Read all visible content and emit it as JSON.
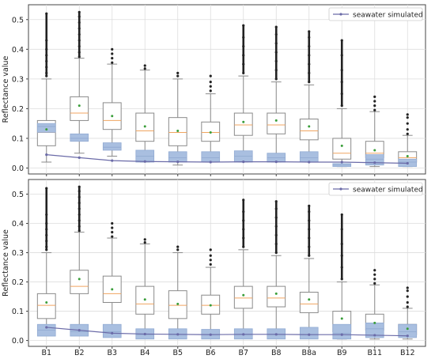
{
  "chart_data": [
    {
      "type": "box",
      "ylabel": "Reflectance value",
      "ylim": [
        -0.02,
        0.55
      ],
      "yticks": [
        "0.0",
        "0.1",
        "0.2",
        "0.3",
        "0.4",
        "0.5"
      ],
      "categories": [
        "B1",
        "B2",
        "B3",
        "B4",
        "B5",
        "B6",
        "B7",
        "B8",
        "B8a",
        "B9",
        "B11",
        "B12"
      ],
      "show_xticklabels": false,
      "grid": true,
      "legend": {
        "label": "seawater simulated",
        "placement": "top-right"
      },
      "series": [
        {
          "role": "white-boxes",
          "boxes": [
            {
              "whislo": 0.02,
              "q1": 0.075,
              "med": 0.12,
              "q3": 0.16,
              "whishi": 0.3,
              "mean": 0.13,
              "fliers": [
                0.31,
                0.32,
                0.34,
                0.36,
                0.38,
                0.4,
                0.43,
                0.52
              ]
            },
            {
              "whislo": 0.05,
              "q1": 0.16,
              "med": 0.185,
              "q3": 0.24,
              "whishi": 0.37,
              "mean": 0.21,
              "fliers": [
                0.375,
                0.39,
                0.41,
                0.43,
                0.45,
                0.47,
                0.49,
                0.51,
                0.525
              ]
            },
            {
              "whislo": 0.04,
              "q1": 0.13,
              "med": 0.16,
              "q3": 0.22,
              "whishi": 0.35,
              "mean": 0.175,
              "fliers": [
                0.355,
                0.37,
                0.385,
                0.4
              ]
            },
            {
              "whislo": 0.02,
              "q1": 0.09,
              "med": 0.125,
              "q3": 0.185,
              "whishi": 0.33,
              "mean": 0.14,
              "fliers": [
                0.335,
                0.345
              ]
            },
            {
              "whislo": 0.01,
              "q1": 0.075,
              "med": 0.12,
              "q3": 0.17,
              "whishi": 0.3,
              "mean": 0.125,
              "fliers": [
                0.31,
                0.32
              ]
            },
            {
              "whislo": 0.02,
              "q1": 0.09,
              "med": 0.12,
              "q3": 0.155,
              "whishi": 0.25,
              "mean": 0.12,
              "fliers": [
                0.26,
                0.275,
                0.29,
                0.31
              ]
            },
            {
              "whislo": 0.02,
              "q1": 0.11,
              "med": 0.145,
              "q3": 0.185,
              "whishi": 0.31,
              "mean": 0.155,
              "fliers": [
                0.32,
                0.35,
                0.38,
                0.41,
                0.44,
                0.48
              ]
            },
            {
              "whislo": 0.02,
              "q1": 0.115,
              "med": 0.145,
              "q3": 0.185,
              "whishi": 0.29,
              "mean": 0.16,
              "fliers": [
                0.3,
                0.33,
                0.36,
                0.39,
                0.42,
                0.45,
                0.475
              ]
            },
            {
              "whislo": 0.02,
              "q1": 0.095,
              "med": 0.125,
              "q3": 0.165,
              "whishi": 0.28,
              "mean": 0.14,
              "fliers": [
                0.29,
                0.32,
                0.35,
                0.38,
                0.41,
                0.44,
                0.46
              ]
            },
            {
              "whislo": 0.005,
              "q1": 0.03,
              "med": 0.05,
              "q3": 0.1,
              "whishi": 0.2,
              "mean": 0.075,
              "fliers": [
                0.21,
                0.25,
                0.29,
                0.33,
                0.38,
                0.43
              ]
            },
            {
              "whislo": 0.005,
              "q1": 0.035,
              "med": 0.05,
              "q3": 0.09,
              "whishi": 0.19,
              "mean": 0.06,
              "fliers": [
                0.195,
                0.21,
                0.225,
                0.24
              ]
            },
            {
              "whislo": 0.005,
              "q1": 0.02,
              "med": 0.035,
              "q3": 0.055,
              "whishi": 0.11,
              "mean": 0.04,
              "fliers": [
                0.115,
                0.13,
                0.15,
                0.17,
                0.18
              ]
            }
          ]
        },
        {
          "role": "blue-boxes",
          "boxes": [
            {
              "q1": 0.12,
              "med": 0.14,
              "q3": 0.15
            },
            {
              "q1": 0.09,
              "med": 0.1,
              "q3": 0.115
            },
            {
              "q1": 0.06,
              "med": 0.07,
              "q3": 0.085
            },
            {
              "q1": 0.02,
              "med": 0.04,
              "q3": 0.06
            },
            {
              "q1": 0.02,
              "med": 0.035,
              "q3": 0.055
            },
            {
              "q1": 0.02,
              "med": 0.035,
              "q3": 0.055
            },
            {
              "q1": 0.02,
              "med": 0.04,
              "q3": 0.058
            },
            {
              "q1": 0.02,
              "med": 0.035,
              "q3": 0.05
            },
            {
              "q1": 0.02,
              "med": 0.035,
              "q3": 0.055
            },
            {
              "q1": 0.005,
              "med": 0.01,
              "q3": 0.015
            },
            {
              "q1": 0.01,
              "med": 0.03,
              "q3": 0.045
            },
            {
              "q1": 0.005,
              "med": 0.02,
              "q3": 0.03
            }
          ]
        },
        {
          "name": "seawater simulated",
          "role": "line",
          "values": [
            0.045,
            0.035,
            0.025,
            0.022,
            0.021,
            0.02,
            0.021,
            0.021,
            0.02,
            0.02,
            0.018,
            0.016
          ]
        }
      ]
    },
    {
      "type": "box",
      "ylabel": "Reflectance value",
      "ylim": [
        -0.02,
        0.55
      ],
      "yticks": [
        "0.0",
        "0.1",
        "0.2",
        "0.3",
        "0.4",
        "0.5"
      ],
      "categories": [
        "B1",
        "B2",
        "B3",
        "B4",
        "B5",
        "B6",
        "B7",
        "B8",
        "B8a",
        "B9",
        "B11",
        "B12"
      ],
      "show_xticklabels": true,
      "grid": true,
      "legend": {
        "label": "seawater simulated",
        "placement": "top-right"
      },
      "series": [
        {
          "role": "white-boxes",
          "boxes": [
            {
              "whislo": 0.02,
              "q1": 0.075,
              "med": 0.12,
              "q3": 0.16,
              "whishi": 0.3,
              "mean": 0.13,
              "fliers": [
                0.31,
                0.32,
                0.34,
                0.36,
                0.38,
                0.4,
                0.43,
                0.52
              ]
            },
            {
              "whislo": 0.05,
              "q1": 0.16,
              "med": 0.185,
              "q3": 0.24,
              "whishi": 0.37,
              "mean": 0.21,
              "fliers": [
                0.375,
                0.39,
                0.41,
                0.43,
                0.45,
                0.47,
                0.49,
                0.51,
                0.525
              ]
            },
            {
              "whislo": 0.04,
              "q1": 0.13,
              "med": 0.16,
              "q3": 0.22,
              "whishi": 0.35,
              "mean": 0.175,
              "fliers": [
                0.355,
                0.37,
                0.385,
                0.4
              ]
            },
            {
              "whislo": 0.02,
              "q1": 0.09,
              "med": 0.125,
              "q3": 0.185,
              "whishi": 0.33,
              "mean": 0.14,
              "fliers": [
                0.335,
                0.345
              ]
            },
            {
              "whislo": 0.01,
              "q1": 0.075,
              "med": 0.12,
              "q3": 0.17,
              "whishi": 0.3,
              "mean": 0.125,
              "fliers": [
                0.31,
                0.32
              ]
            },
            {
              "whislo": 0.02,
              "q1": 0.09,
              "med": 0.12,
              "q3": 0.155,
              "whishi": 0.25,
              "mean": 0.12,
              "fliers": [
                0.26,
                0.275,
                0.29,
                0.31
              ]
            },
            {
              "whislo": 0.02,
              "q1": 0.11,
              "med": 0.145,
              "q3": 0.185,
              "whishi": 0.31,
              "mean": 0.155,
              "fliers": [
                0.32,
                0.35,
                0.38,
                0.41,
                0.44,
                0.48
              ]
            },
            {
              "whislo": 0.02,
              "q1": 0.115,
              "med": 0.145,
              "q3": 0.185,
              "whishi": 0.29,
              "mean": 0.16,
              "fliers": [
                0.3,
                0.33,
                0.36,
                0.39,
                0.42,
                0.45,
                0.475
              ]
            },
            {
              "whislo": 0.02,
              "q1": 0.095,
              "med": 0.125,
              "q3": 0.165,
              "whishi": 0.28,
              "mean": 0.14,
              "fliers": [
                0.29,
                0.32,
                0.35,
                0.38,
                0.41,
                0.44,
                0.46
              ]
            },
            {
              "whislo": 0.005,
              "q1": 0.03,
              "med": 0.05,
              "q3": 0.1,
              "whishi": 0.2,
              "mean": 0.075,
              "fliers": [
                0.21,
                0.25,
                0.29,
                0.33,
                0.38,
                0.43
              ]
            },
            {
              "whislo": 0.005,
              "q1": 0.035,
              "med": 0.05,
              "q3": 0.09,
              "whishi": 0.19,
              "mean": 0.06,
              "fliers": [
                0.195,
                0.21,
                0.225,
                0.24
              ]
            },
            {
              "whislo": 0.005,
              "q1": 0.02,
              "med": 0.035,
              "q3": 0.055,
              "whishi": 0.11,
              "mean": 0.04,
              "fliers": [
                0.115,
                0.13,
                0.15,
                0.17,
                0.18
              ]
            }
          ]
        },
        {
          "role": "blue-boxes",
          "boxes": [
            {
              "q1": 0.015,
              "med": 0.035,
              "q3": 0.055
            },
            {
              "q1": 0.015,
              "med": 0.03,
              "q3": 0.055
            },
            {
              "q1": 0.01,
              "med": 0.03,
              "q3": 0.055
            },
            {
              "q1": 0.005,
              "med": 0.02,
              "q3": 0.04
            },
            {
              "q1": 0.005,
              "med": 0.02,
              "q3": 0.04
            },
            {
              "q1": 0.005,
              "med": 0.02,
              "q3": 0.038
            },
            {
              "q1": 0.005,
              "med": 0.02,
              "q3": 0.04
            },
            {
              "q1": 0.005,
              "med": 0.02,
              "q3": 0.04
            },
            {
              "q1": 0.005,
              "med": 0.02,
              "q3": 0.045
            },
            {
              "q1": 0.005,
              "med": 0.025,
              "q3": 0.055
            },
            {
              "q1": 0.01,
              "med": 0.04,
              "q3": 0.06
            },
            {
              "q1": 0.01,
              "med": 0.03,
              "q3": 0.055
            }
          ]
        },
        {
          "name": "seawater simulated",
          "role": "line",
          "values": [
            0.045,
            0.035,
            0.025,
            0.022,
            0.021,
            0.02,
            0.021,
            0.021,
            0.02,
            0.02,
            0.018,
            0.016
          ]
        }
      ]
    }
  ],
  "colors": {
    "box_edge": "#8a8a8a",
    "median": "#f0a560",
    "mean": "#3a9e3a",
    "blue_box_fill": "#a9bfe0",
    "blue_box_edge": "#92abd3",
    "line": "#6b6ba8",
    "flier": "#222222",
    "grid": "#dddddd",
    "axes": "#444444"
  }
}
